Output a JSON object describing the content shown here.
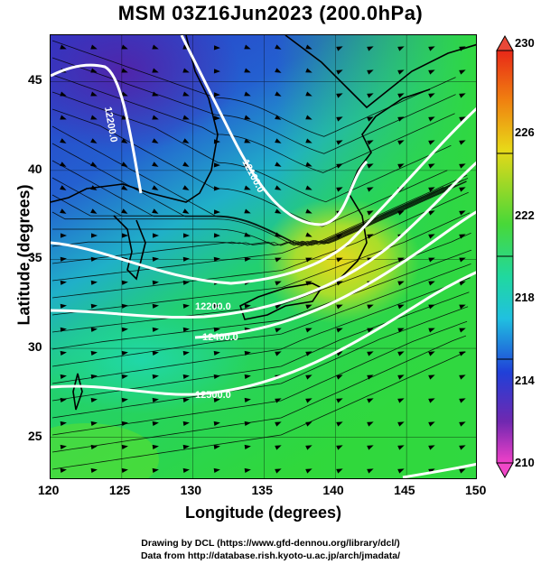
{
  "title": "MSM 03Z16Jun2023 (200.0hPa)",
  "x_axis": {
    "label": "Longitude (degrees)",
    "ticks": [
      "120",
      "125",
      "130",
      "135",
      "140",
      "145",
      "150"
    ]
  },
  "y_axis": {
    "label": "Latitude  (degrees)",
    "ticks": [
      "45",
      "40",
      "35",
      "30",
      "25"
    ]
  },
  "colorbar": {
    "ticks": [
      "230",
      "226",
      "222",
      "218",
      "214",
      "210"
    ],
    "min": 210,
    "max": 230
  },
  "contours": [
    {
      "label": "12200.0"
    },
    {
      "label": "12100.0"
    },
    {
      "label": "12300.0"
    },
    {
      "label": "12400.0"
    },
    {
      "label": "12500.0"
    }
  ],
  "credits": {
    "line1": "Drawing by DCL (https://www.gfd-dennou.org/library/dcl/)",
    "line2": "Data from http://database.rish.kyoto-u.ac.jp/arch/jmadata/"
  },
  "colors": {
    "purple": "#5a2aa0",
    "blue": "#2a3fd0",
    "cyan": "#1ec8d8",
    "green": "#28d23c",
    "yellow": "#e8e020",
    "orange": "#f0a010",
    "red": "#e82818"
  }
}
